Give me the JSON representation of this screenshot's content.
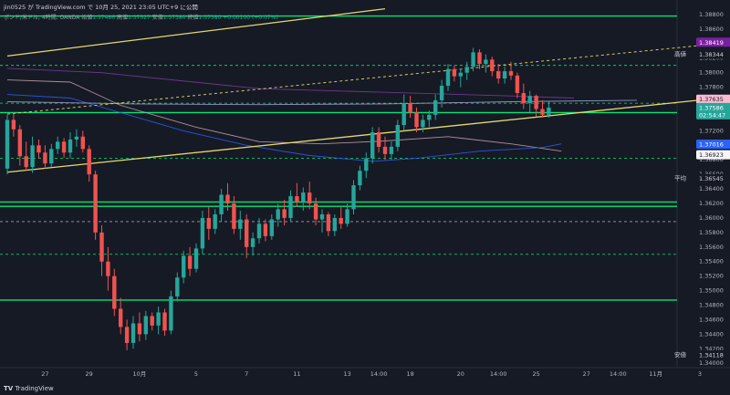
{
  "header": {
    "publisher": "jin0525 が TradingView.com で 10月 25, 2021 23:05 UTC+9 に公開",
    "symbol_line": "ポンド/米ドル, 4時間, OANDA",
    "ohlc_open_label": "始値",
    "ohlc_open": "1.37486",
    "ohlc_high_label": "高値",
    "ohlc_high": "1.37527",
    "ohlc_low_label": "安値",
    "ohlc_low": "1.37380",
    "ohlc_close_label": "終値",
    "ohlc_close": "1.37380",
    "change": "+0.00100 (+0.07%)"
  },
  "footer": {
    "brand": "TradingView"
  },
  "colors": {
    "background": "#161a25",
    "up": "#26a69a",
    "down": "#ef5350",
    "green_line": "#00e676",
    "yellow_line": "#e6d96e",
    "pink_ma": "#c9a5b0",
    "blue_ma": "#2962ff",
    "purple_ma": "#7b3fa0"
  },
  "chart_data": {
    "type": "candlestick",
    "price_scale": [
      "1.38800",
      "1.38600",
      "1.38400",
      "1.38200",
      "1.38000",
      "1.37800",
      "1.37600",
      "1.37400",
      "1.37200",
      "1.37000",
      "1.36800",
      "1.36600",
      "1.36400",
      "1.36200",
      "1.36000",
      "1.35800",
      "1.35600",
      "1.35400",
      "1.35200",
      "1.35000",
      "1.34800",
      "1.34600",
      "1.34400",
      "1.34200",
      "1.34000"
    ],
    "ylim": [
      1.3394,
      1.389
    ],
    "time_labels": [
      {
        "label": "27",
        "i": 6
      },
      {
        "label": "29",
        "i": 13
      },
      {
        "label": "10月",
        "i": 21
      },
      {
        "label": "5",
        "i": 30
      },
      {
        "label": "7",
        "i": 38
      },
      {
        "label": "11",
        "i": 46
      },
      {
        "label": "13",
        "i": 54
      },
      {
        "label": "14:00",
        "i": 59
      },
      {
        "label": "18",
        "i": 64
      },
      {
        "label": "20",
        "i": 72
      },
      {
        "label": "14:00",
        "i": 78
      },
      {
        "label": "25",
        "i": 84
      },
      {
        "label": "27",
        "i": 92
      },
      {
        "label": "14:00",
        "i": 97
      },
      {
        "label": "11月",
        "i": 103
      },
      {
        "label": "3",
        "i": 110
      }
    ],
    "price_tags": [
      {
        "label": "",
        "value": "1.38419",
        "price": 1.38419,
        "bg": "#7b1fa2",
        "fg": "#ffffff"
      },
      {
        "label": "高値",
        "value": "1.38344",
        "price": 1.38254,
        "bg": "#161a25",
        "fg": "#d1d4dc"
      },
      {
        "label": "",
        "value": "1.37635",
        "price": 1.37635,
        "bg": "#f8bbd0",
        "fg": "#161a25"
      },
      {
        "label": "",
        "value": "1.37586",
        "price": 1.3752,
        "bg": "#26a69a",
        "fg": "#ffffff"
      },
      {
        "label": "",
        "value": "02:54:47",
        "price": 1.3742,
        "bg": "#26a69a",
        "fg": "#ffffff"
      },
      {
        "label": "",
        "value": "1.37016",
        "price": 1.37016,
        "bg": "#2962ff",
        "fg": "#ffffff"
      },
      {
        "label": "",
        "value": "1.36923",
        "price": 1.3687,
        "bg": "#f5f5f5",
        "fg": "#161a25"
      },
      {
        "label": "平均",
        "value": "1.36545",
        "price": 1.36545,
        "bg": "#161a25",
        "fg": "#d1d4dc"
      },
      {
        "label": "安値",
        "value": "1.34118",
        "price": 1.34118,
        "bg": "#161a25",
        "fg": "#d1d4dc"
      }
    ],
    "horizontal_levels": [
      {
        "price": 1.3878,
        "style": "solid",
        "color": "#00e676"
      },
      {
        "price": 1.381,
        "style": "dashed",
        "color": "#00e676"
      },
      {
        "price": 1.3758,
        "style": "dashed",
        "color": "#00e676"
      },
      {
        "price": 1.3745,
        "style": "solid",
        "color": "#00e676"
      },
      {
        "price": 1.3682,
        "style": "dashed",
        "color": "#00e676"
      },
      {
        "price": 1.3622,
        "style": "solid",
        "color": "#00e676"
      },
      {
        "price": 1.3616,
        "style": "solid",
        "color": "#00e676"
      },
      {
        "price": 1.3595,
        "style": "dashed",
        "color": "#9aa0ac"
      },
      {
        "price": 1.355,
        "style": "dashed",
        "color": "#00e676"
      },
      {
        "price": 1.3487,
        "style": "solid",
        "color": "#00e676"
      }
    ],
    "trend_lines": [
      {
        "i0": 0,
        "p0": 1.3823,
        "i1": 60,
        "p1": 1.3888,
        "color": "#e6d96e",
        "style": "solid"
      },
      {
        "i0": 0,
        "p0": 1.3663,
        "i1": 113,
        "p1": 1.3765,
        "color": "#e6d96e",
        "style": "solid"
      },
      {
        "i0": 0,
        "p0": 1.3743,
        "i1": 113,
        "p1": 1.384,
        "color": "#e6d96e",
        "style": "dashed"
      }
    ],
    "moving_averages": [
      {
        "name": "",
        "color": "#7b3fa0",
        "points": [
          [
            0,
            1.3806
          ],
          [
            15,
            1.38
          ],
          [
            40,
            1.3778
          ],
          [
            60,
            1.3773
          ],
          [
            80,
            1.3768
          ],
          [
            90,
            1.3765
          ]
        ]
      },
      {
        "name": "",
        "color": "#c9a5b0",
        "points": [
          [
            0,
            1.379
          ],
          [
            10,
            1.3787
          ],
          [
            18,
            1.3755
          ],
          [
            30,
            1.3725
          ],
          [
            40,
            1.3705
          ],
          [
            50,
            1.3702
          ],
          [
            60,
            1.3706
          ],
          [
            70,
            1.3712
          ],
          [
            80,
            1.3702
          ],
          [
            88,
            1.3692
          ]
        ]
      },
      {
        "name": "",
        "color": "#2962ff",
        "points": [
          [
            0,
            1.377
          ],
          [
            10,
            1.3765
          ],
          [
            18,
            1.3745
          ],
          [
            28,
            1.372
          ],
          [
            38,
            1.37
          ],
          [
            48,
            1.3686
          ],
          [
            58,
            1.3678
          ],
          [
            65,
            1.3682
          ],
          [
            75,
            1.3692
          ],
          [
            85,
            1.3697
          ],
          [
            88,
            1.3702
          ]
        ]
      },
      {
        "name": "",
        "color": "#9fa8da",
        "points": [
          [
            0,
            1.376
          ],
          [
            20,
            1.3757
          ],
          [
            40,
            1.3756
          ],
          [
            60,
            1.3757
          ],
          [
            80,
            1.376
          ],
          [
            100,
            1.3762
          ]
        ]
      }
    ],
    "candles": [
      {
        "o": 1.3668,
        "h": 1.3742,
        "l": 1.366,
        "c": 1.3735
      },
      {
        "o": 1.3735,
        "h": 1.3745,
        "l": 1.3712,
        "c": 1.3722
      },
      {
        "o": 1.3722,
        "h": 1.3728,
        "l": 1.3672,
        "c": 1.3685
      },
      {
        "o": 1.3685,
        "h": 1.3705,
        "l": 1.3665,
        "c": 1.367
      },
      {
        "o": 1.367,
        "h": 1.3712,
        "l": 1.3662,
        "c": 1.37
      },
      {
        "o": 1.37,
        "h": 1.3708,
        "l": 1.3682,
        "c": 1.369
      },
      {
        "o": 1.369,
        "h": 1.37,
        "l": 1.3668,
        "c": 1.3675
      },
      {
        "o": 1.3675,
        "h": 1.3702,
        "l": 1.367,
        "c": 1.3695
      },
      {
        "o": 1.3695,
        "h": 1.3712,
        "l": 1.3688,
        "c": 1.3705
      },
      {
        "o": 1.3705,
        "h": 1.371,
        "l": 1.3683,
        "c": 1.369
      },
      {
        "o": 1.369,
        "h": 1.3718,
        "l": 1.3682,
        "c": 1.3708
      },
      {
        "o": 1.3708,
        "h": 1.3722,
        "l": 1.3698,
        "c": 1.3712
      },
      {
        "o": 1.3712,
        "h": 1.372,
        "l": 1.369,
        "c": 1.3695
      },
      {
        "o": 1.3695,
        "h": 1.37,
        "l": 1.365,
        "c": 1.366
      },
      {
        "o": 1.366,
        "h": 1.3665,
        "l": 1.357,
        "c": 1.358
      },
      {
        "o": 1.358,
        "h": 1.359,
        "l": 1.352,
        "c": 1.354
      },
      {
        "o": 1.354,
        "h": 1.356,
        "l": 1.35,
        "c": 1.352
      },
      {
        "o": 1.352,
        "h": 1.353,
        "l": 1.3465,
        "c": 1.3475
      },
      {
        "o": 1.3475,
        "h": 1.349,
        "l": 1.344,
        "c": 1.345
      },
      {
        "o": 1.345,
        "h": 1.346,
        "l": 1.3418,
        "c": 1.3428
      },
      {
        "o": 1.3428,
        "h": 1.3465,
        "l": 1.342,
        "c": 1.3455
      },
      {
        "o": 1.3455,
        "h": 1.347,
        "l": 1.343,
        "c": 1.344
      },
      {
        "o": 1.344,
        "h": 1.3472,
        "l": 1.3432,
        "c": 1.3465
      },
      {
        "o": 1.3465,
        "h": 1.347,
        "l": 1.3445,
        "c": 1.3452
      },
      {
        "o": 1.3452,
        "h": 1.3478,
        "l": 1.344,
        "c": 1.347
      },
      {
        "o": 1.347,
        "h": 1.3475,
        "l": 1.3438,
        "c": 1.3445
      },
      {
        "o": 1.3445,
        "h": 1.35,
        "l": 1.344,
        "c": 1.3492
      },
      {
        "o": 1.3492,
        "h": 1.3525,
        "l": 1.3485,
        "c": 1.3518
      },
      {
        "o": 1.3518,
        "h": 1.3555,
        "l": 1.351,
        "c": 1.3548
      },
      {
        "o": 1.3548,
        "h": 1.356,
        "l": 1.352,
        "c": 1.353
      },
      {
        "o": 1.353,
        "h": 1.3565,
        "l": 1.3525,
        "c": 1.3558
      },
      {
        "o": 1.3558,
        "h": 1.361,
        "l": 1.355,
        "c": 1.36
      },
      {
        "o": 1.36,
        "h": 1.3615,
        "l": 1.357,
        "c": 1.3585
      },
      {
        "o": 1.3585,
        "h": 1.3612,
        "l": 1.3578,
        "c": 1.3605
      },
      {
        "o": 1.3605,
        "h": 1.364,
        "l": 1.3595,
        "c": 1.3632
      },
      {
        "o": 1.3632,
        "h": 1.3648,
        "l": 1.361,
        "c": 1.362
      },
      {
        "o": 1.362,
        "h": 1.363,
        "l": 1.3578,
        "c": 1.3585
      },
      {
        "o": 1.3585,
        "h": 1.361,
        "l": 1.357,
        "c": 1.3598
      },
      {
        "o": 1.3598,
        "h": 1.3605,
        "l": 1.3545,
        "c": 1.356
      },
      {
        "o": 1.356,
        "h": 1.358,
        "l": 1.3548,
        "c": 1.3572
      },
      {
        "o": 1.3572,
        "h": 1.36,
        "l": 1.3565,
        "c": 1.3592
      },
      {
        "o": 1.3592,
        "h": 1.3598,
        "l": 1.3568,
        "c": 1.3575
      },
      {
        "o": 1.3575,
        "h": 1.3605,
        "l": 1.357,
        "c": 1.3598
      },
      {
        "o": 1.3598,
        "h": 1.362,
        "l": 1.3588,
        "c": 1.3612
      },
      {
        "o": 1.3612,
        "h": 1.3625,
        "l": 1.359,
        "c": 1.36
      },
      {
        "o": 1.36,
        "h": 1.3638,
        "l": 1.3595,
        "c": 1.363
      },
      {
        "o": 1.363,
        "h": 1.3648,
        "l": 1.3615,
        "c": 1.3622
      },
      {
        "o": 1.3622,
        "h": 1.3642,
        "l": 1.361,
        "c": 1.3635
      },
      {
        "o": 1.3635,
        "h": 1.365,
        "l": 1.3612,
        "c": 1.362
      },
      {
        "o": 1.362,
        "h": 1.3628,
        "l": 1.359,
        "c": 1.3598
      },
      {
        "o": 1.3598,
        "h": 1.3612,
        "l": 1.358,
        "c": 1.3605
      },
      {
        "o": 1.3605,
        "h": 1.3608,
        "l": 1.3575,
        "c": 1.3582
      },
      {
        "o": 1.3582,
        "h": 1.3605,
        "l": 1.3575,
        "c": 1.36
      },
      {
        "o": 1.36,
        "h": 1.3615,
        "l": 1.3585,
        "c": 1.3592
      },
      {
        "o": 1.3592,
        "h": 1.362,
        "l": 1.3588,
        "c": 1.3612
      },
      {
        "o": 1.3612,
        "h": 1.3652,
        "l": 1.3605,
        "c": 1.3645
      },
      {
        "o": 1.3645,
        "h": 1.3672,
        "l": 1.3638,
        "c": 1.3665
      },
      {
        "o": 1.3665,
        "h": 1.369,
        "l": 1.3655,
        "c": 1.3682
      },
      {
        "o": 1.3682,
        "h": 1.3725,
        "l": 1.3675,
        "c": 1.3718
      },
      {
        "o": 1.3718,
        "h": 1.3725,
        "l": 1.369,
        "c": 1.3698
      },
      {
        "o": 1.3698,
        "h": 1.3712,
        "l": 1.368,
        "c": 1.3688
      },
      {
        "o": 1.3688,
        "h": 1.3705,
        "l": 1.368,
        "c": 1.3698
      },
      {
        "o": 1.3698,
        "h": 1.3735,
        "l": 1.3692,
        "c": 1.3728
      },
      {
        "o": 1.3728,
        "h": 1.377,
        "l": 1.372,
        "c": 1.3758
      },
      {
        "o": 1.3758,
        "h": 1.3768,
        "l": 1.3738,
        "c": 1.3745
      },
      {
        "o": 1.3745,
        "h": 1.3752,
        "l": 1.3718,
        "c": 1.3725
      },
      {
        "o": 1.3725,
        "h": 1.3742,
        "l": 1.3718,
        "c": 1.3735
      },
      {
        "o": 1.3735,
        "h": 1.3748,
        "l": 1.3725,
        "c": 1.3742
      },
      {
        "o": 1.3742,
        "h": 1.377,
        "l": 1.3735,
        "c": 1.3762
      },
      {
        "o": 1.3762,
        "h": 1.379,
        "l": 1.3752,
        "c": 1.3782
      },
      {
        "o": 1.3782,
        "h": 1.3812,
        "l": 1.3775,
        "c": 1.3805
      },
      {
        "o": 1.3805,
        "h": 1.381,
        "l": 1.3788,
        "c": 1.3795
      },
      {
        "o": 1.3795,
        "h": 1.3805,
        "l": 1.378,
        "c": 1.38
      },
      {
        "o": 1.38,
        "h": 1.3815,
        "l": 1.379,
        "c": 1.3808
      },
      {
        "o": 1.3808,
        "h": 1.3834,
        "l": 1.3802,
        "c": 1.3828
      },
      {
        "o": 1.3828,
        "h": 1.3832,
        "l": 1.3805,
        "c": 1.3812
      },
      {
        "o": 1.3812,
        "h": 1.3825,
        "l": 1.38,
        "c": 1.3818
      },
      {
        "o": 1.3818,
        "h": 1.3822,
        "l": 1.3795,
        "c": 1.3802
      },
      {
        "o": 1.3802,
        "h": 1.3812,
        "l": 1.3785,
        "c": 1.3792
      },
      {
        "o": 1.3792,
        "h": 1.3808,
        "l": 1.3785,
        "c": 1.3802
      },
      {
        "o": 1.3802,
        "h": 1.3815,
        "l": 1.379,
        "c": 1.3796
      },
      {
        "o": 1.3796,
        "h": 1.38,
        "l": 1.3765,
        "c": 1.3772
      },
      {
        "o": 1.3772,
        "h": 1.3785,
        "l": 1.375,
        "c": 1.3758
      },
      {
        "o": 1.3758,
        "h": 1.3775,
        "l": 1.3745,
        "c": 1.3768
      },
      {
        "o": 1.3768,
        "h": 1.377,
        "l": 1.374,
        "c": 1.375
      },
      {
        "o": 1.375,
        "h": 1.3762,
        "l": 1.3738,
        "c": 1.3742
      },
      {
        "o": 1.3742,
        "h": 1.376,
        "l": 1.3738,
        "c": 1.3752
      }
    ]
  }
}
